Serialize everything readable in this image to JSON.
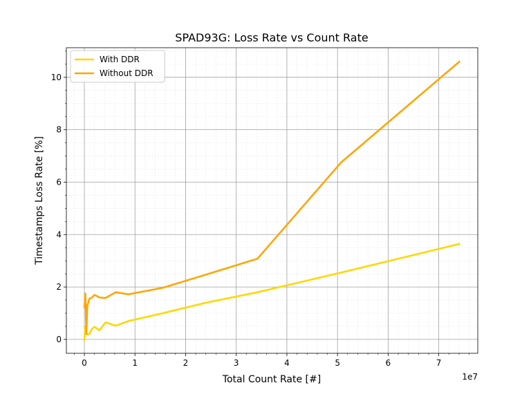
{
  "chart_data": {
    "type": "line",
    "title": "SPAD93G: Loss Rate vs Count Rate",
    "xlabel": "Total Count Rate [#]",
    "ylabel": "Timestamps Loss Rate [%]",
    "x_offset_label": "1e7",
    "x": [
      0,
      200000,
      400000,
      600000,
      1000000,
      1500000,
      2000000,
      3000000,
      4200000,
      6200000,
      8700000,
      15500000,
      24000000,
      34200000,
      50700000,
      74200000
    ],
    "series": [
      {
        "name": "With DDR",
        "color": "#ffd700",
        "values": [
          -0.05,
          0.5,
          0.2,
          0.2,
          0.2,
          0.4,
          0.48,
          0.35,
          0.65,
          0.52,
          0.7,
          1.0,
          1.4,
          1.8,
          2.55,
          3.65
        ]
      },
      {
        "name": "Without DDR",
        "color": "#ffa500",
        "values": [
          1.2,
          1.75,
          0.2,
          1.3,
          1.55,
          1.6,
          1.7,
          1.6,
          1.58,
          1.8,
          1.72,
          1.97,
          2.47,
          3.08,
          6.75,
          10.62
        ]
      }
    ],
    "xlim": [
      -3550000,
      77700000
    ],
    "ylim": [
      -0.53,
      11.13
    ],
    "xticks": [
      {
        "value": 0,
        "label": "0"
      },
      {
        "value": 10000000,
        "label": "1"
      },
      {
        "value": 20000000,
        "label": "2"
      },
      {
        "value": 30000000,
        "label": "3"
      },
      {
        "value": 40000000,
        "label": "4"
      },
      {
        "value": 50000000,
        "label": "5"
      },
      {
        "value": 60000000,
        "label": "6"
      },
      {
        "value": 70000000,
        "label": "7"
      }
    ],
    "yticks": [
      0,
      2,
      4,
      6,
      8,
      10
    ],
    "xminorticks": [
      -2000000,
      2000000,
      4000000,
      6000000,
      8000000,
      12000000,
      14000000,
      16000000,
      18000000,
      22000000,
      24000000,
      26000000,
      28000000,
      32000000,
      34000000,
      36000000,
      38000000,
      42000000,
      44000000,
      46000000,
      48000000,
      52000000,
      54000000,
      56000000,
      58000000,
      62000000,
      64000000,
      66000000,
      68000000,
      72000000,
      74000000,
      76000000
    ],
    "yminorticks": [
      0.5,
      1,
      1.5,
      2.5,
      3,
      3.5,
      4.5,
      5,
      5.5,
      6.5,
      7,
      7.5,
      8.5,
      9,
      9.5,
      10.5,
      11
    ],
    "grid": true,
    "legend": "upper left"
  }
}
